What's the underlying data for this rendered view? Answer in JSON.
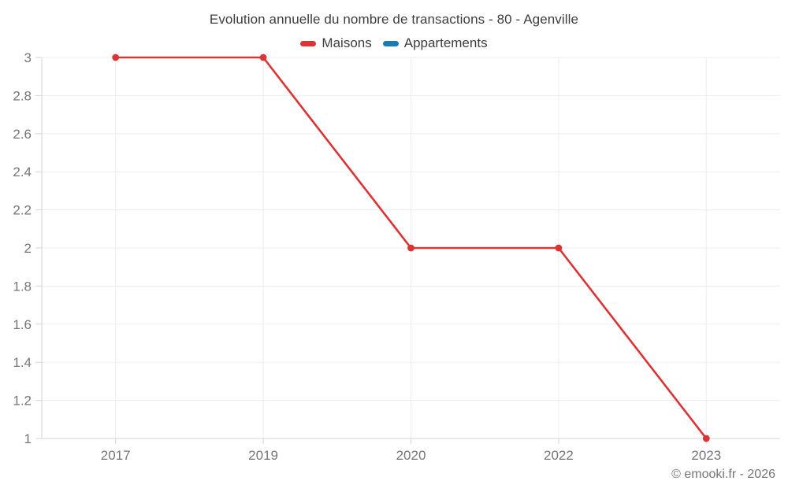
{
  "chart_data": {
    "type": "line",
    "title": "Evolution annuelle du nombre de transactions - 80 - Agenville",
    "categories": [
      "2017",
      "2019",
      "2020",
      "2022",
      "2023"
    ],
    "series": [
      {
        "name": "Maisons",
        "color": "#db3434",
        "values": [
          3,
          3,
          2,
          2,
          1
        ]
      },
      {
        "name": "Appartements",
        "color": "#1b79b4",
        "values": []
      }
    ],
    "ylim": [
      1,
      3
    ],
    "yticks": [
      "1",
      "1.2",
      "1.4",
      "1.6",
      "1.8",
      "2",
      "2.2",
      "2.4",
      "2.6",
      "2.8",
      "3"
    ],
    "xlabel": "",
    "ylabel": "",
    "grid": true,
    "legend_position": "top",
    "colors": {
      "gridline": "#ededed",
      "axis": "#d6d6d6",
      "tick_label": "#767676",
      "title_text": "#3d3d3d"
    }
  },
  "footer": {
    "copyright": "© emooki.fr - 2026"
  }
}
